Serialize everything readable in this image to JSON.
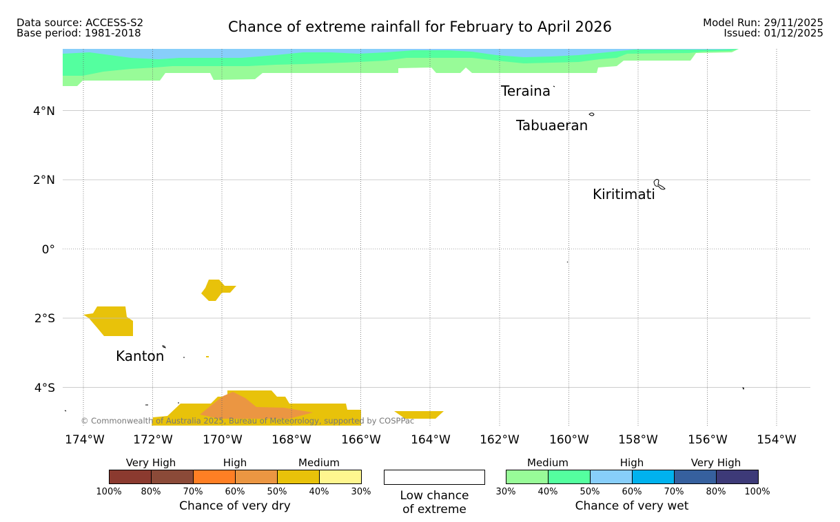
{
  "header": {
    "data_source": "Data source: ACCESS-S2",
    "base_period": "Base period: 1981-2018",
    "title": "Chance of extreme rainfall for February to April 2026",
    "model_run": "Model Run: 29/11/2025",
    "issued": "Issued: 01/12/2025"
  },
  "map": {
    "lat_labels": [
      "4°N",
      "2°N",
      "0°",
      "2°S",
      "4°S"
    ],
    "lon_labels": [
      "174°W",
      "172°W",
      "170°W",
      "168°W",
      "166°W",
      "164°W",
      "162°W",
      "160°W",
      "158°W",
      "156°W",
      "154°W"
    ],
    "places": [
      "Teraina",
      "Tabuaeran",
      "Kiritimati",
      "Kanton"
    ],
    "copyright": "© Commonwealth of Australia 2025, Bureau of Meteorology, supported by COSPPac"
  },
  "legend": {
    "dry": {
      "categories": [
        "Very High",
        "High",
        "Medium"
      ],
      "ticks": [
        "100%",
        "80%",
        "70%",
        "60%",
        "50%",
        "40%",
        "30%"
      ],
      "colors": [
        "#8b3a2f",
        "#8b4a38",
        "#ff7f24",
        "#eb9642",
        "#e8c20a",
        "#fff68f"
      ],
      "caption": "Chance of very dry"
    },
    "low": {
      "line1": "Low chance",
      "line2": "of extreme"
    },
    "wet": {
      "categories": [
        "Medium",
        "High",
        "Very High"
      ],
      "ticks": [
        "30%",
        "40%",
        "50%",
        "60%",
        "70%",
        "80%",
        "100%"
      ],
      "colors": [
        "#98fb98",
        "#54ff9f",
        "#87cefa",
        "#00b2ee",
        "#36609e",
        "#3d3a78"
      ],
      "caption": "Chance of very wet"
    }
  }
}
